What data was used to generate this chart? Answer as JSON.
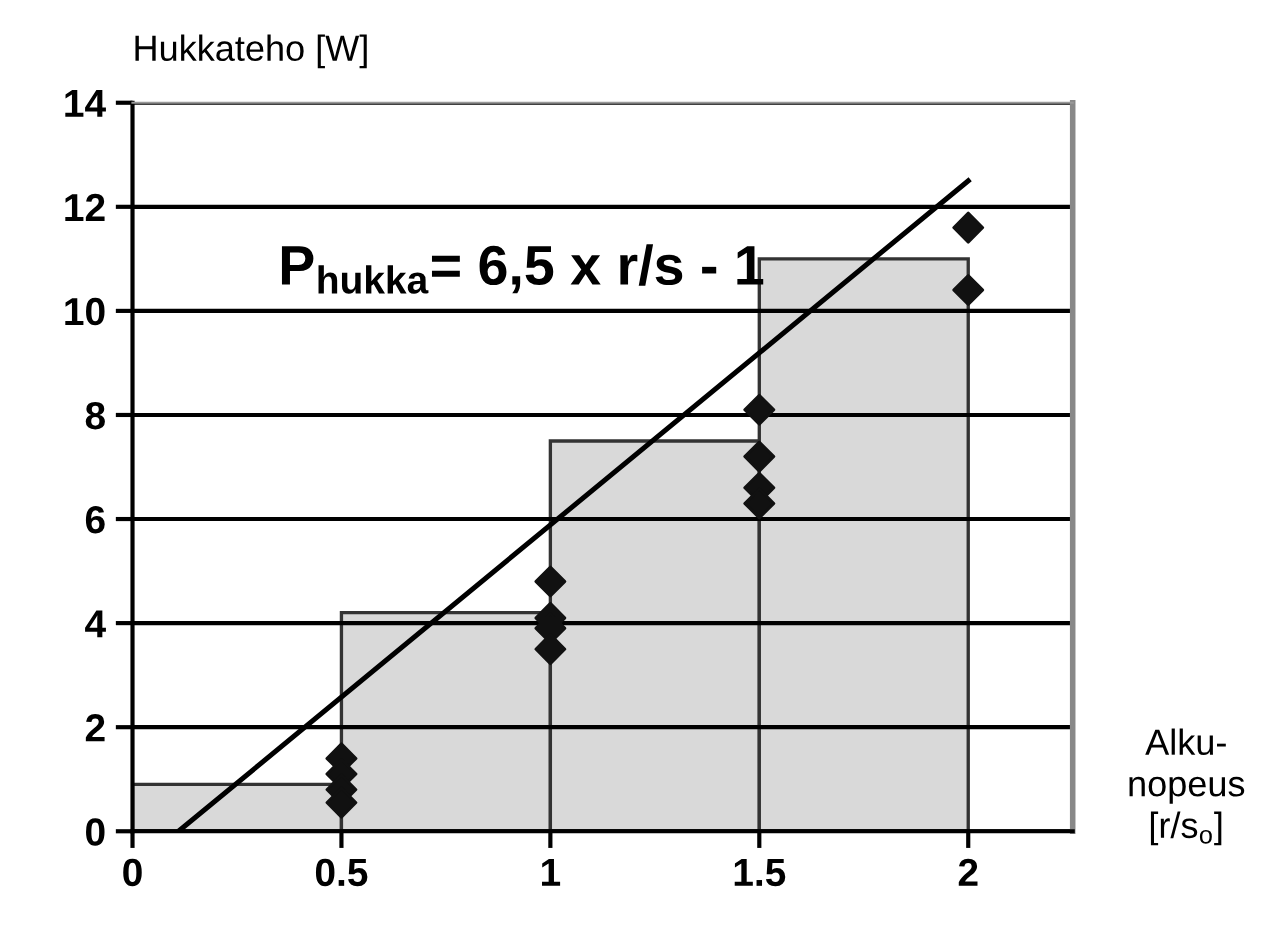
{
  "chart_data": {
    "type": "histogram",
    "ylabel": "Hukkateho [W]",
    "xlabel": "Alku-\nnopeus\n[r/s$_{o}$]",
    "bins": [
      0,
      0.5,
      1,
      1.5,
      2
    ],
    "values": [
      0.9,
      4.2,
      7.5,
      11
    ],
    "color": "#d9d9d9",
    "series": [
      {
        "type": "scatter",
        "color": "#111111",
        "marker": "diamond",
        "x": [
          0.5,
          0.5,
          0.5,
          0.5,
          1,
          1,
          1,
          1,
          1.5,
          1.5,
          1.5,
          1.5,
          2,
          2
        ],
        "values": [
          1.4,
          1.1,
          0.8,
          0.55,
          4.8,
          4.1,
          3.9,
          3.5,
          8.1,
          7.2,
          6.6,
          6.3,
          11.6,
          10.4
        ]
      },
      {
        "type": "line",
        "color": "#000000",
        "x": [
          0.11,
          2.0
        ],
        "values": [
          0,
          12.5
        ]
      }
    ],
    "annotations": [
      "P$_{hukka}$= 6,5 x r/s - 1"
    ],
    "xlim": [
      0,
      2.25
    ],
    "ylim": [
      0,
      14
    ],
    "xticks": [
      0,
      0.5,
      1,
      1.5,
      2
    ],
    "yticks": [
      0,
      2,
      4,
      6,
      8,
      10,
      12,
      14
    ],
    "grid": "y"
  }
}
